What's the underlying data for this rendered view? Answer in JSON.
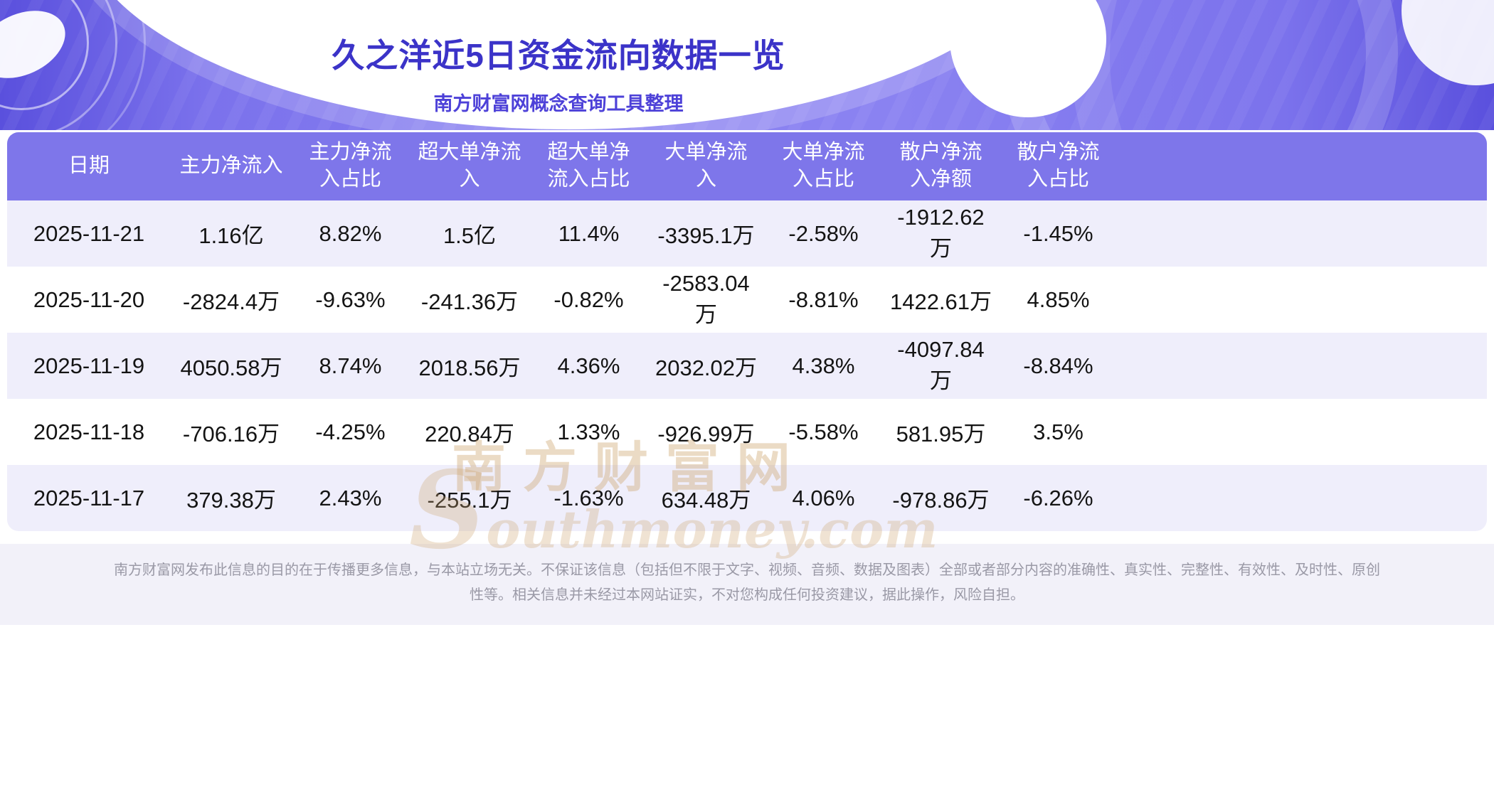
{
  "page": {
    "title": "久之洋近5日资金流向数据一览",
    "subtitle": "南方财富网概念查询工具整理"
  },
  "table": {
    "headers": [
      "日期",
      "主力净流入",
      "主力净流入占比",
      "超大单净流入",
      "超大单净流入占比",
      "大单净流入",
      "大单净流入占比",
      "散户净流入净额",
      "散户净流入占比"
    ],
    "rows": [
      [
        "2025-11-21",
        "1.16亿",
        "8.82%",
        "1.5亿",
        "11.4%",
        "-3395.1万",
        "-2.58%",
        "-1912.62万",
        "-1.45%"
      ],
      [
        "2025-11-20",
        "-2824.4万",
        "-9.63%",
        "-241.36万",
        "-0.82%",
        "-2583.04万",
        "-8.81%",
        "1422.61万",
        "4.85%"
      ],
      [
        "2025-11-19",
        "4050.58万",
        "8.74%",
        "2018.56万",
        "4.36%",
        "2032.02万",
        "4.38%",
        "-4097.84万",
        "-8.84%"
      ],
      [
        "2025-11-18",
        "-706.16万",
        "-4.25%",
        "220.84万",
        "1.33%",
        "-926.99万",
        "-5.58%",
        "581.95万",
        "3.5%"
      ],
      [
        "2025-11-17",
        "379.38万",
        "2.43%",
        "-255.1万",
        "-1.63%",
        "634.48万",
        "4.06%",
        "-978.86万",
        "-6.26%"
      ]
    ]
  },
  "watermark": {
    "cn": "南方财富网",
    "en": "Southmoney.com"
  },
  "footer": {
    "disclaimer": "南方财富网发布此信息的目的在于传播更多信息，与本站立场无关。不保证该信息（包括但不限于文字、视频、音频、数据及图表）全部或者部分内容的准确性、真实性、完整性、有效性、及时性、原创性等。相关信息并未经过本网站证实，不对您构成任何投资建议，据此操作，风险自担。"
  },
  "colors": {
    "banner_purple": "#7b72ec",
    "banner_deep": "#5a50dd",
    "title": "#3b33c8",
    "subtitle": "#4d41d8",
    "table_header_bg": "#7e76ea",
    "row_alt_bg": "#efeefb",
    "row_bg": "#ffffff",
    "cell_text": "#141414",
    "footer_bg": "#f2f1f9",
    "footer_text": "#9a99a6",
    "watermark_gold": "#cea670"
  }
}
